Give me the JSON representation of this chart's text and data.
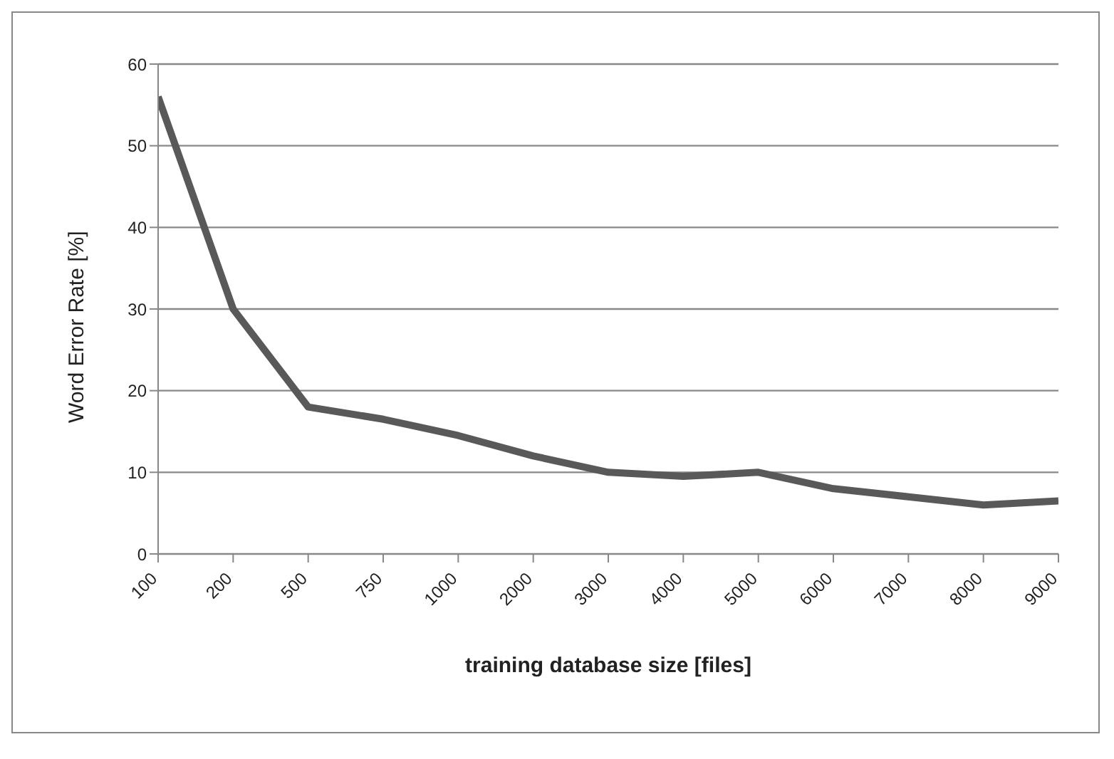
{
  "chart_data": {
    "type": "line",
    "xlabel": "training database size [files]",
    "ylabel": "Word Error Rate [%]",
    "categories": [
      "100",
      "200",
      "500",
      "750",
      "1000",
      "2000",
      "3000",
      "4000",
      "5000",
      "6000",
      "7000",
      "8000",
      "9000"
    ],
    "series": [
      {
        "color": "#595959",
        "values": [
          56,
          30,
          18,
          16.5,
          14.5,
          12,
          10,
          9.5,
          10,
          8,
          7,
          6,
          6.5
        ]
      }
    ],
    "ylim": [
      0,
      60
    ],
    "yticks": [
      0,
      10,
      20,
      30,
      40,
      50,
      60
    ],
    "grid": "y",
    "legend": false,
    "marker": "none",
    "line_style": "solid"
  }
}
